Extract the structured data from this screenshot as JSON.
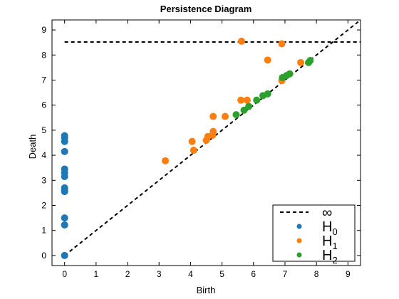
{
  "chart_data": {
    "type": "scatter",
    "title": "Persistence Diagram",
    "xlabel": "Birth",
    "ylabel": "Death",
    "xlim": [
      -0.4,
      9.4
    ],
    "ylim": [
      -0.4,
      9.4
    ],
    "xticks": [
      0,
      1,
      2,
      3,
      4,
      5,
      6,
      7,
      8,
      9
    ],
    "yticks": [
      0,
      1,
      2,
      3,
      4,
      5,
      6,
      7,
      8,
      9
    ],
    "infinity_line": 8.52,
    "diagonal": true,
    "legend_position": "bottom-right",
    "legend": [
      {
        "kind": "line",
        "text": "∞",
        "sub": ""
      },
      {
        "kind": "point",
        "series": "H0",
        "text": "H",
        "sub": "0"
      },
      {
        "kind": "point",
        "series": "H1",
        "text": "H",
        "sub": "1"
      },
      {
        "kind": "point",
        "series": "H2",
        "text": "H",
        "sub": "2"
      }
    ],
    "series": [
      {
        "name": "H0",
        "color": "#1f77b4",
        "points": [
          [
            0,
            0.0
          ],
          [
            0,
            1.22
          ],
          [
            0,
            1.5
          ],
          [
            0,
            2.55
          ],
          [
            0,
            2.62
          ],
          [
            0,
            2.7
          ],
          [
            0,
            3.15
          ],
          [
            0,
            3.3
          ],
          [
            0,
            3.45
          ],
          [
            0,
            4.15
          ],
          [
            0,
            4.55
          ],
          [
            0,
            4.7
          ],
          [
            0,
            4.78
          ]
        ]
      },
      {
        "name": "H1",
        "color": "#ff7f0e",
        "points": [
          [
            3.2,
            3.78
          ],
          [
            4.05,
            4.55
          ],
          [
            4.1,
            4.2
          ],
          [
            4.5,
            4.6
          ],
          [
            4.55,
            4.75
          ],
          [
            4.7,
            4.8
          ],
          [
            4.72,
            5.55
          ],
          [
            4.72,
            4.95
          ],
          [
            5.1,
            5.55
          ],
          [
            5.6,
            6.2
          ],
          [
            5.8,
            6.2
          ],
          [
            5.62,
            8.55
          ],
          [
            6.45,
            7.8
          ],
          [
            6.9,
            8.45
          ],
          [
            6.9,
            6.98
          ],
          [
            7.5,
            7.7
          ]
        ]
      },
      {
        "name": "H2",
        "color": "#2ca02c",
        "points": [
          [
            5.45,
            5.62
          ],
          [
            5.7,
            5.8
          ],
          [
            5.85,
            5.95
          ],
          [
            6.1,
            6.2
          ],
          [
            6.3,
            6.38
          ],
          [
            6.45,
            6.45
          ],
          [
            6.92,
            7.1
          ],
          [
            7.05,
            7.18
          ],
          [
            7.15,
            7.25
          ],
          [
            7.75,
            7.7
          ],
          [
            7.8,
            7.78
          ]
        ]
      }
    ]
  }
}
